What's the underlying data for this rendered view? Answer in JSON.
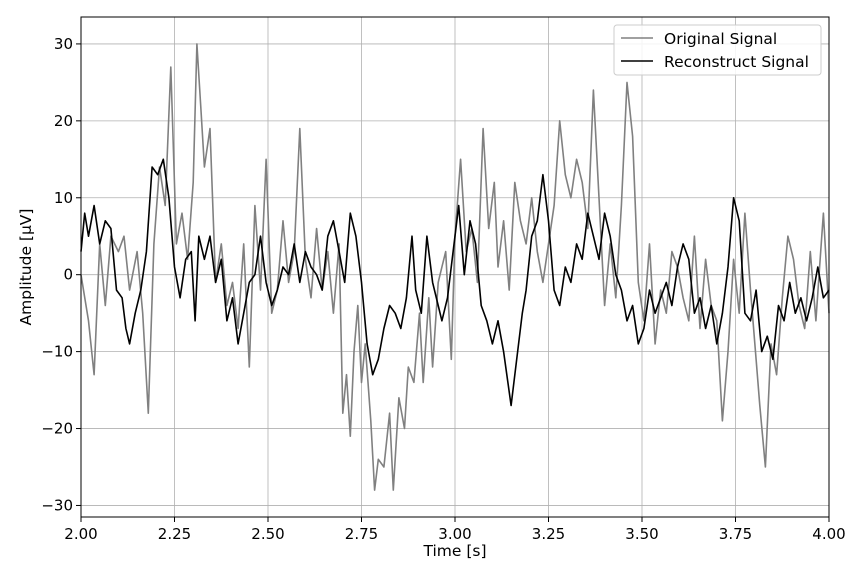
{
  "chart_data": {
    "type": "line",
    "xlabel": "Time [s]",
    "ylabel": "Amplitude [μV]",
    "xlim": [
      2.0,
      4.0
    ],
    "ylim": [
      -31.5,
      33.5
    ],
    "xticks": [
      2.0,
      2.25,
      2.5,
      2.75,
      3.0,
      3.25,
      3.5,
      3.75,
      4.0
    ],
    "xtick_labels": [
      "2.00",
      "2.25",
      "2.50",
      "2.75",
      "3.00",
      "3.25",
      "3.50",
      "3.75",
      "4.00"
    ],
    "yticks": [
      -30,
      -20,
      -10,
      0,
      10,
      20,
      30
    ],
    "ytick_labels": [
      "−30",
      "−20",
      "−10",
      "0",
      "10",
      "20",
      "30"
    ],
    "grid": true,
    "legend_position": "top-right",
    "series": [
      {
        "name": "Original Signal",
        "color": "#808080",
        "points": [
          [
            2.0,
            0
          ],
          [
            2.02,
            -6
          ],
          [
            2.035,
            -13
          ],
          [
            2.05,
            4
          ],
          [
            2.065,
            -4
          ],
          [
            2.08,
            5
          ],
          [
            2.1,
            3
          ],
          [
            2.115,
            5
          ],
          [
            2.13,
            -2
          ],
          [
            2.15,
            3
          ],
          [
            2.165,
            -5
          ],
          [
            2.18,
            -18
          ],
          [
            2.195,
            4
          ],
          [
            2.21,
            14
          ],
          [
            2.225,
            9
          ],
          [
            2.24,
            27
          ],
          [
            2.255,
            4
          ],
          [
            2.27,
            8
          ],
          [
            2.285,
            2
          ],
          [
            2.3,
            12
          ],
          [
            2.31,
            30
          ],
          [
            2.32,
            22
          ],
          [
            2.33,
            14
          ],
          [
            2.345,
            19
          ],
          [
            2.36,
            -1
          ],
          [
            2.375,
            4
          ],
          [
            2.39,
            -4
          ],
          [
            2.405,
            -1
          ],
          [
            2.42,
            -7
          ],
          [
            2.435,
            4
          ],
          [
            2.45,
            -12
          ],
          [
            2.465,
            9
          ],
          [
            2.48,
            -2
          ],
          [
            2.495,
            15
          ],
          [
            2.51,
            -5
          ],
          [
            2.525,
            -2
          ],
          [
            2.54,
            7
          ],
          [
            2.555,
            -1
          ],
          [
            2.57,
            3
          ],
          [
            2.585,
            19
          ],
          [
            2.6,
            2
          ],
          [
            2.615,
            -3
          ],
          [
            2.63,
            6
          ],
          [
            2.645,
            -2
          ],
          [
            2.66,
            3
          ],
          [
            2.675,
            -5
          ],
          [
            2.69,
            4
          ],
          [
            2.7,
            -18
          ],
          [
            2.71,
            -13
          ],
          [
            2.72,
            -21
          ],
          [
            2.73,
            -10
          ],
          [
            2.74,
            -4
          ],
          [
            2.75,
            -14
          ],
          [
            2.76,
            -9
          ],
          [
            2.775,
            -19
          ],
          [
            2.785,
            -28
          ],
          [
            2.795,
            -24
          ],
          [
            2.81,
            -25
          ],
          [
            2.825,
            -18
          ],
          [
            2.835,
            -28
          ],
          [
            2.85,
            -16
          ],
          [
            2.865,
            -20
          ],
          [
            2.875,
            -12
          ],
          [
            2.89,
            -14
          ],
          [
            2.905,
            -5
          ],
          [
            2.915,
            -14
          ],
          [
            2.93,
            -3
          ],
          [
            2.94,
            -12
          ],
          [
            2.955,
            -1
          ],
          [
            2.965,
            1
          ],
          [
            2.975,
            3
          ],
          [
            2.99,
            -11
          ],
          [
            3.0,
            5
          ],
          [
            3.015,
            15
          ],
          [
            3.03,
            3
          ],
          [
            3.045,
            6
          ],
          [
            3.06,
            -1
          ],
          [
            3.075,
            19
          ],
          [
            3.09,
            6
          ],
          [
            3.105,
            12
          ],
          [
            3.115,
            1
          ],
          [
            3.13,
            7
          ],
          [
            3.145,
            -2
          ],
          [
            3.16,
            12
          ],
          [
            3.175,
            7
          ],
          [
            3.19,
            4
          ],
          [
            3.205,
            10
          ],
          [
            3.22,
            3
          ],
          [
            3.235,
            -1
          ],
          [
            3.25,
            4
          ],
          [
            3.265,
            9
          ],
          [
            3.28,
            20
          ],
          [
            3.295,
            13
          ],
          [
            3.31,
            10
          ],
          [
            3.325,
            15
          ],
          [
            3.34,
            12
          ],
          [
            3.355,
            6
          ],
          [
            3.37,
            24
          ],
          [
            3.385,
            10
          ],
          [
            3.4,
            -4
          ],
          [
            3.415,
            4
          ],
          [
            3.43,
            -3
          ],
          [
            3.445,
            9
          ],
          [
            3.46,
            25
          ],
          [
            3.475,
            18
          ],
          [
            3.49,
            -1
          ],
          [
            3.505,
            -6
          ],
          [
            3.52,
            4
          ],
          [
            3.535,
            -9
          ],
          [
            3.55,
            -2
          ],
          [
            3.565,
            -5
          ],
          [
            3.58,
            3
          ],
          [
            3.595,
            1
          ],
          [
            3.61,
            -3
          ],
          [
            3.625,
            -6
          ],
          [
            3.64,
            5
          ],
          [
            3.655,
            -7
          ],
          [
            3.67,
            2
          ],
          [
            3.685,
            -4
          ],
          [
            3.7,
            -6
          ],
          [
            3.715,
            -19
          ],
          [
            3.73,
            -10
          ],
          [
            3.745,
            2
          ],
          [
            3.76,
            -5
          ],
          [
            3.775,
            8
          ],
          [
            3.79,
            -2
          ],
          [
            3.805,
            -11
          ],
          [
            3.815,
            -17
          ],
          [
            3.83,
            -25
          ],
          [
            3.845,
            -9
          ],
          [
            3.86,
            -13
          ],
          [
            3.875,
            -3
          ],
          [
            3.89,
            5
          ],
          [
            3.905,
            2
          ],
          [
            3.92,
            -4
          ],
          [
            3.935,
            -7
          ],
          [
            3.95,
            3
          ],
          [
            3.965,
            -6
          ],
          [
            3.975,
            1
          ],
          [
            3.985,
            8
          ],
          [
            4.0,
            -5
          ]
        ]
      },
      {
        "name": "Reconstruct Signal",
        "color": "#000000",
        "points": [
          [
            2.0,
            3
          ],
          [
            2.01,
            8
          ],
          [
            2.02,
            5
          ],
          [
            2.035,
            9
          ],
          [
            2.05,
            4
          ],
          [
            2.065,
            7
          ],
          [
            2.08,
            6
          ],
          [
            2.095,
            -2
          ],
          [
            2.11,
            -3
          ],
          [
            2.12,
            -7
          ],
          [
            2.13,
            -9
          ],
          [
            2.145,
            -5
          ],
          [
            2.16,
            -2
          ],
          [
            2.175,
            3
          ],
          [
            2.19,
            14
          ],
          [
            2.205,
            13
          ],
          [
            2.22,
            15
          ],
          [
            2.235,
            10
          ],
          [
            2.25,
            1
          ],
          [
            2.265,
            -3
          ],
          [
            2.28,
            2
          ],
          [
            2.295,
            3
          ],
          [
            2.305,
            -6
          ],
          [
            2.315,
            5
          ],
          [
            2.33,
            2
          ],
          [
            2.345,
            5
          ],
          [
            2.36,
            -1
          ],
          [
            2.375,
            2
          ],
          [
            2.39,
            -6
          ],
          [
            2.405,
            -3
          ],
          [
            2.42,
            -9
          ],
          [
            2.435,
            -5
          ],
          [
            2.45,
            -1
          ],
          [
            2.465,
            0
          ],
          [
            2.48,
            5
          ],
          [
            2.495,
            -1
          ],
          [
            2.51,
            -4
          ],
          [
            2.525,
            -2
          ],
          [
            2.54,
            1
          ],
          [
            2.555,
            0
          ],
          [
            2.57,
            4
          ],
          [
            2.585,
            -1
          ],
          [
            2.6,
            3
          ],
          [
            2.615,
            1
          ],
          [
            2.63,
            0
          ],
          [
            2.645,
            -2
          ],
          [
            2.66,
            5
          ],
          [
            2.675,
            7
          ],
          [
            2.69,
            3
          ],
          [
            2.705,
            -1
          ],
          [
            2.72,
            8
          ],
          [
            2.735,
            5
          ],
          [
            2.75,
            -1
          ],
          [
            2.765,
            -9
          ],
          [
            2.78,
            -13
          ],
          [
            2.795,
            -11
          ],
          [
            2.81,
            -7
          ],
          [
            2.825,
            -4
          ],
          [
            2.84,
            -5
          ],
          [
            2.855,
            -7
          ],
          [
            2.87,
            -3
          ],
          [
            2.885,
            5
          ],
          [
            2.895,
            -2
          ],
          [
            2.91,
            -5
          ],
          [
            2.925,
            5
          ],
          [
            2.94,
            -1
          ],
          [
            2.955,
            -4
          ],
          [
            2.965,
            -6
          ],
          [
            2.98,
            -3
          ],
          [
            2.995,
            3
          ],
          [
            3.01,
            9
          ],
          [
            3.025,
            0
          ],
          [
            3.04,
            7
          ],
          [
            3.055,
            4
          ],
          [
            3.07,
            -4
          ],
          [
            3.085,
            -6
          ],
          [
            3.1,
            -9
          ],
          [
            3.115,
            -6
          ],
          [
            3.13,
            -10
          ],
          [
            3.15,
            -17
          ],
          [
            3.165,
            -11
          ],
          [
            3.18,
            -5
          ],
          [
            3.19,
            -2
          ],
          [
            3.205,
            5
          ],
          [
            3.22,
            7
          ],
          [
            3.235,
            13
          ],
          [
            3.25,
            7
          ],
          [
            3.265,
            -2
          ],
          [
            3.28,
            -4
          ],
          [
            3.295,
            1
          ],
          [
            3.31,
            -1
          ],
          [
            3.325,
            4
          ],
          [
            3.34,
            2
          ],
          [
            3.355,
            8
          ],
          [
            3.37,
            5
          ],
          [
            3.385,
            2
          ],
          [
            3.4,
            8
          ],
          [
            3.415,
            5
          ],
          [
            3.43,
            0
          ],
          [
            3.445,
            -2
          ],
          [
            3.46,
            -6
          ],
          [
            3.475,
            -4
          ],
          [
            3.49,
            -9
          ],
          [
            3.505,
            -7
          ],
          [
            3.52,
            -2
          ],
          [
            3.535,
            -5
          ],
          [
            3.55,
            -3
          ],
          [
            3.565,
            -1
          ],
          [
            3.58,
            -4
          ],
          [
            3.595,
            1
          ],
          [
            3.61,
            4
          ],
          [
            3.625,
            2
          ],
          [
            3.64,
            -5
          ],
          [
            3.655,
            -3
          ],
          [
            3.67,
            -7
          ],
          [
            3.685,
            -4
          ],
          [
            3.7,
            -9
          ],
          [
            3.715,
            -5
          ],
          [
            3.73,
            1
          ],
          [
            3.745,
            10
          ],
          [
            3.76,
            7
          ],
          [
            3.775,
            -5
          ],
          [
            3.79,
            -6
          ],
          [
            3.805,
            -2
          ],
          [
            3.82,
            -10
          ],
          [
            3.835,
            -8
          ],
          [
            3.85,
            -11
          ],
          [
            3.865,
            -4
          ],
          [
            3.88,
            -6
          ],
          [
            3.895,
            -1
          ],
          [
            3.91,
            -5
          ],
          [
            3.925,
            -3
          ],
          [
            3.94,
            -6
          ],
          [
            3.955,
            -3
          ],
          [
            3.97,
            1
          ],
          [
            3.985,
            -3
          ],
          [
            4.0,
            -2
          ]
        ]
      }
    ]
  }
}
